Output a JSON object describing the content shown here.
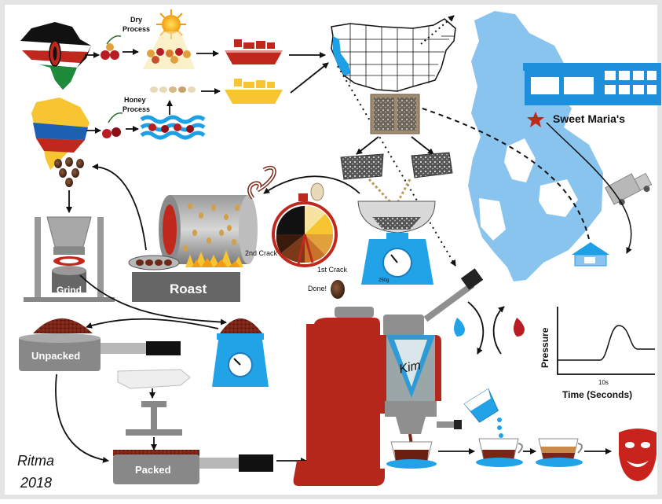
{
  "labels": {
    "dry_process": [
      "Dry",
      "Process"
    ],
    "honey_process": [
      "Honey",
      "Process"
    ],
    "roaster": "Sweet Maria's",
    "grind": "Grind",
    "roast": "Roast",
    "second_crack": "2nd Crack",
    "first_crack": "1st Crack",
    "done": "Done!",
    "unpacked": "Unpacked",
    "packed": "Packed",
    "machine_logo": "Kim",
    "scale_reading": "250g",
    "pressure_axis": "Pressure",
    "time_axis": "Time (Seconds)",
    "time_tick": "10s",
    "signature_name": "Ritma",
    "signature_year": "2018"
  },
  "colors": {
    "ship_red": "#c0271d",
    "ship_yellow": "#f6c531",
    "water_blue": "#1ea0e6",
    "bay_blue": "#88c4ee",
    "scale_blue": "#22a3e8",
    "machine_red": "#b5271b",
    "metal_grey": "#8f8f8f",
    "cherry_red": "#b81d24",
    "mask_red": "#c8231c"
  }
}
